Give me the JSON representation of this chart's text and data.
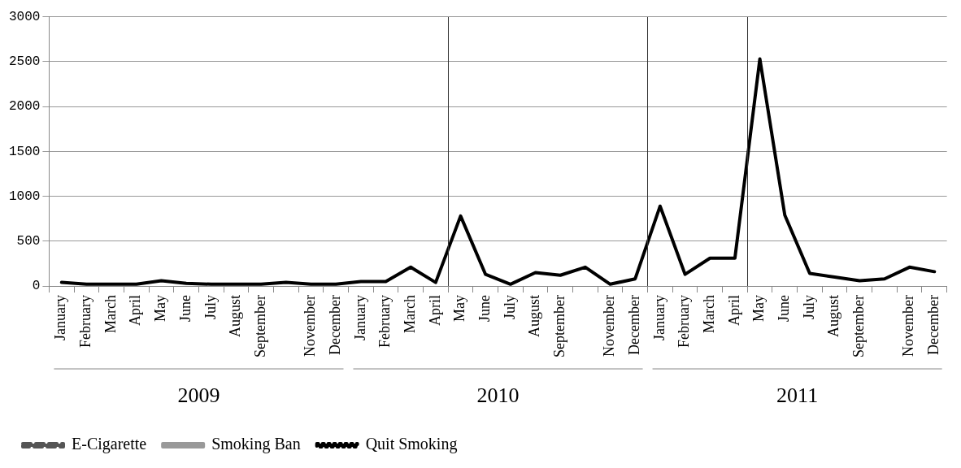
{
  "chart_data": {
    "type": "line",
    "categories": [
      "January",
      "February",
      "March",
      "April",
      "May",
      "June",
      "July",
      "August",
      "September",
      null,
      "November",
      "December",
      "January",
      "February",
      "March",
      "April",
      "May",
      "June",
      "July",
      "August",
      "September",
      null,
      "November",
      "December",
      "January",
      "February",
      "March",
      "April",
      "May",
      "June",
      "July",
      "August",
      "September",
      null,
      "November",
      "December"
    ],
    "annotations": [
      "2009",
      "2010",
      "2011"
    ],
    "series": [
      {
        "color": "#000000",
        "line_style": "solid",
        "values": [
          40,
          20,
          20,
          20,
          60,
          30,
          20,
          20,
          20,
          40,
          20,
          20,
          50,
          50,
          210,
          40,
          780,
          130,
          20,
          150,
          120,
          210,
          20,
          80,
          890,
          130,
          310,
          310,
          2530,
          790,
          140,
          100,
          60,
          80,
          210,
          160
        ]
      },
      {
        "name": "E-Cigarette",
        "color": "#555555",
        "line_style": "dashed",
        "values": [
          null,
          null,
          null,
          null,
          null,
          null,
          null,
          null,
          null,
          null,
          null,
          null,
          null,
          null,
          null,
          null,
          null,
          null,
          null,
          null,
          null,
          null,
          null,
          null,
          null,
          null,
          null,
          null,
          null,
          null,
          null,
          null,
          null,
          null,
          null,
          null
        ]
      },
      {
        "name": "Smoking Ban",
        "color": "#999999",
        "line_style": "solid",
        "values": [
          null,
          null,
          null,
          null,
          null,
          null,
          null,
          null,
          null,
          null,
          null,
          null,
          null,
          null,
          null,
          null,
          null,
          null,
          null,
          null,
          null,
          null,
          null,
          null,
          null,
          null,
          null,
          null,
          null,
          null,
          null,
          null,
          null,
          null,
          null,
          null
        ]
      },
      {
        "name": "Quit Smoking",
        "color": "#000000",
        "line_style": "dotted",
        "values": [
          null,
          null,
          null,
          null,
          null,
          null,
          null,
          null,
          null,
          null,
          null,
          null,
          null,
          null,
          null,
          null,
          null,
          null,
          null,
          null,
          null,
          null,
          null,
          null,
          null,
          null,
          null,
          null,
          null,
          null,
          null,
          null,
          null,
          null,
          null,
          null
        ]
      }
    ],
    "ylim": [
      0,
      3000
    ],
    "yticks": [
      0,
      500,
      1000,
      1500,
      2000,
      2500,
      3000
    ],
    "grid": "y",
    "legend": "bottom left",
    "marker": "none"
  }
}
